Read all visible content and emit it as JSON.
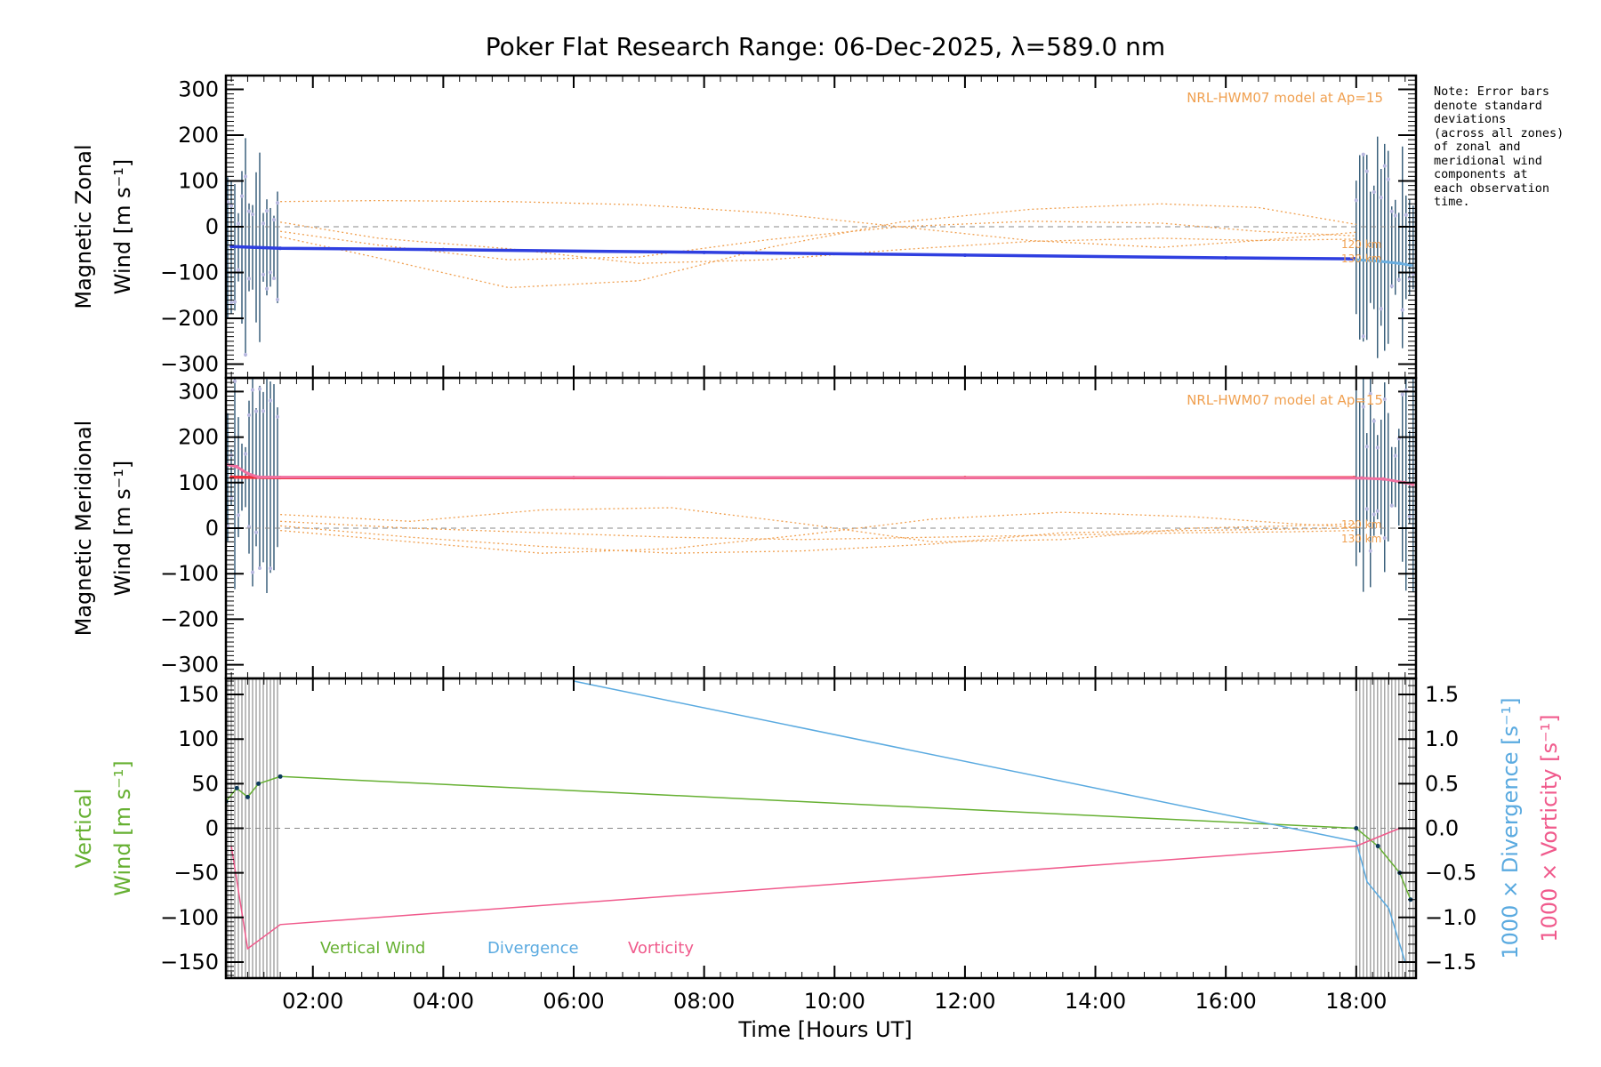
{
  "title": "Poker Flat Research Range: 06-Dec-2025, λ=589.0 nm",
  "note": [
    "Note: Error bars",
    "denote standard",
    "deviations",
    "(across all zones)",
    "of zonal and",
    "meridional wind",
    "components at",
    "each observation",
    "time."
  ],
  "x_axis": {
    "label": "Time [Hours UT]",
    "range": [
      "00:40",
      "18:55"
    ],
    "ticks": [
      "02:00",
      "04:00",
      "06:00",
      "08:00",
      "10:00",
      "12:00",
      "14:00",
      "16:00",
      "18:00"
    ]
  },
  "colors": {
    "zonal": "#2f3fe0",
    "zonal_obs": "#6aaee0",
    "meridional": "#f0303c",
    "meridional_obs": "#f070a0",
    "error_bars": "#0b3a5c",
    "scatter": "#b8b8e0",
    "model": "#f0a050",
    "vertical": "#66b032",
    "divergence": "#5aaae0",
    "vorticity": "#f05a8c"
  },
  "chart_data": [
    {
      "type": "line",
      "panel": "zonal",
      "ylabel": [
        "Magnetic Zonal",
        "Wind [m s⁻¹]"
      ],
      "ylim": [
        -330,
        330
      ],
      "yticks": [
        "300",
        "200",
        "100",
        "0",
        "−100",
        "−200",
        "−300"
      ],
      "model_label": "NRL-HWM07 model at Ap=15",
      "altitude_labels": [
        "120 km",
        "130 km"
      ],
      "series": [
        {
          "x": [
            "00:45",
            "01:30",
            "04:00",
            "08:00",
            "12:00",
            "16:00",
            "17:58"
          ],
          "y": [
            -43,
            -47,
            -50,
            -56,
            -62,
            -68,
            -70
          ]
        },
        {
          "x": [
            "18:00",
            "18:20",
            "18:40",
            "18:50"
          ],
          "y": [
            -72,
            -75,
            -80,
            -84
          ]
        }
      ],
      "models": [
        {
          "x": [
            "01:30",
            "03:00",
            "05:00",
            "07:00",
            "09:00",
            "11:00",
            "13:00",
            "15:00",
            "16:30",
            "18:00"
          ],
          "y": [
            -22,
            -68,
            -133,
            -118,
            -45,
            10,
            38,
            50,
            42,
            5
          ]
        },
        {
          "x": [
            "01:30",
            "03:00",
            "05:00",
            "07:00",
            "09:00",
            "11:00",
            "13:00",
            "15:00",
            "16:30",
            "18:00"
          ],
          "y": [
            -10,
            -40,
            -72,
            -66,
            -28,
            0,
            12,
            8,
            -10,
            -20
          ]
        },
        {
          "x": [
            "01:30",
            "03:00",
            "05:00",
            "07:00",
            "09:00",
            "11:00",
            "13:00",
            "15:00",
            "16:30",
            "18:00"
          ],
          "y": [
            10,
            -25,
            -48,
            -80,
            -72,
            -50,
            -32,
            -25,
            -30,
            -27
          ]
        },
        {
          "x": [
            "01:30",
            "03:00",
            "05:00",
            "07:00",
            "09:00",
            "11:00",
            "13:00",
            "15:00",
            "16:30",
            "18:00"
          ],
          "y": [
            55,
            57,
            55,
            48,
            30,
            0,
            -30,
            -45,
            -30,
            -12
          ]
        }
      ]
    },
    {
      "type": "line",
      "panel": "meridional",
      "ylabel": [
        "Magnetic Meridional",
        "Wind [m s⁻¹]"
      ],
      "ylim": [
        -330,
        330
      ],
      "yticks": [
        "300",
        "200",
        "100",
        "0",
        "−100",
        "−200",
        "−300"
      ],
      "model_label": "NRL-HWM07 model at Ap=15",
      "altitude_labels": [
        "120 km",
        "130 km"
      ],
      "series": [
        {
          "x": [
            "00:45",
            "01:30",
            "06:00",
            "12:00",
            "17:58"
          ],
          "y": [
            112,
            111,
            111,
            111,
            111
          ]
        },
        {
          "x": [
            "00:40",
            "00:50",
            "01:00",
            "01:10",
            "18:05",
            "18:25",
            "18:45",
            "18:52"
          ],
          "y": [
            140,
            135,
            120,
            112,
            110,
            108,
            100,
            96
          ]
        }
      ],
      "models": [
        {
          "x": [
            "01:30",
            "03:30",
            "05:30",
            "07:30",
            "09:30",
            "11:30",
            "13:30",
            "15:30",
            "17:00",
            "18:00"
          ],
          "y": [
            30,
            15,
            40,
            45,
            10,
            -30,
            -25,
            0,
            5,
            10
          ]
        },
        {
          "x": [
            "01:30",
            "03:30",
            "05:30",
            "07:30",
            "09:30",
            "11:30",
            "13:30",
            "15:30",
            "17:00",
            "18:00"
          ],
          "y": [
            5,
            -20,
            -40,
            -55,
            -50,
            -35,
            -10,
            -5,
            -2,
            0
          ]
        },
        {
          "x": [
            "01:30",
            "03:30",
            "05:30",
            "07:30",
            "09:30",
            "11:30",
            "13:30",
            "15:30",
            "17:00",
            "18:00"
          ],
          "y": [
            -5,
            -30,
            -55,
            -45,
            -15,
            20,
            35,
            25,
            10,
            2
          ]
        },
        {
          "x": [
            "01:30",
            "03:30",
            "05:30",
            "07:30",
            "09:30",
            "11:30",
            "13:30",
            "15:30",
            "17:00",
            "18:00"
          ],
          "y": [
            15,
            0,
            -10,
            -20,
            -25,
            -20,
            -15,
            -10,
            -8,
            -5
          ]
        }
      ]
    },
    {
      "type": "line",
      "panel": "vertical",
      "ylabel": [
        "Vertical",
        "Wind [m s⁻¹]"
      ],
      "ylim": [
        -168,
        168
      ],
      "yticks": [
        "150",
        "100",
        "50",
        "0",
        "−50",
        "−100",
        "−150"
      ],
      "y2label_divergence": "1000 × Divergence [s⁻¹]",
      "y2label_vorticity": "1000 × Vorticity [s⁻¹]",
      "y2lim": [
        -1.68,
        1.68
      ],
      "y2ticks": [
        "1.5",
        "1.0",
        "0.5",
        "0.0",
        "−0.5",
        "−1.0",
        "−1.5"
      ],
      "legend": [
        "Vertical Wind",
        "Divergence",
        "Vorticity"
      ],
      "series": [
        {
          "name": "Vertical Wind",
          "x": [
            "00:40",
            "00:50",
            "01:00",
            "01:10",
            "01:30",
            "18:00",
            "18:20",
            "18:40",
            "18:50"
          ],
          "y": [
            30,
            45,
            35,
            50,
            58,
            0,
            -20,
            -50,
            -80
          ]
        },
        {
          "name": "Divergence",
          "x": [
            "06:00",
            "18:00",
            "18:10",
            "18:30",
            "18:45"
          ],
          "y": [
            1.65,
            -0.15,
            -0.6,
            -0.9,
            -1.5
          ]
        },
        {
          "name": "Vorticity",
          "x": [
            "00:45",
            "01:00",
            "01:30",
            "18:00",
            "18:20",
            "18:40"
          ],
          "y": [
            -0.2,
            -1.35,
            -1.08,
            -0.2,
            -0.1,
            0.0
          ]
        }
      ]
    }
  ]
}
